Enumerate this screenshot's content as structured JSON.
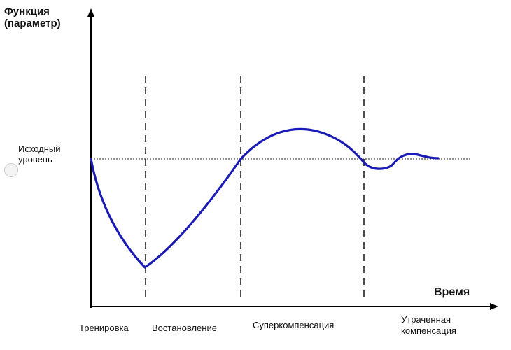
{
  "diagram": {
    "y_axis_title_line1": "Функция",
    "y_axis_title_line2": "(параметр)",
    "x_axis_title": "Время",
    "baseline_label_line1": "Исходный",
    "baseline_label_line2": "уровень",
    "phases": {
      "training": "Тренировка",
      "recovery": "Востановление",
      "supercompensation": "Суперкомпенсация",
      "lost_compensation_line1": "Утраченная",
      "lost_compensation_line2": "компенсация"
    }
  },
  "colors": {
    "curve": "#1a1ab4",
    "axes": "#000000",
    "guides": "#222222"
  }
}
